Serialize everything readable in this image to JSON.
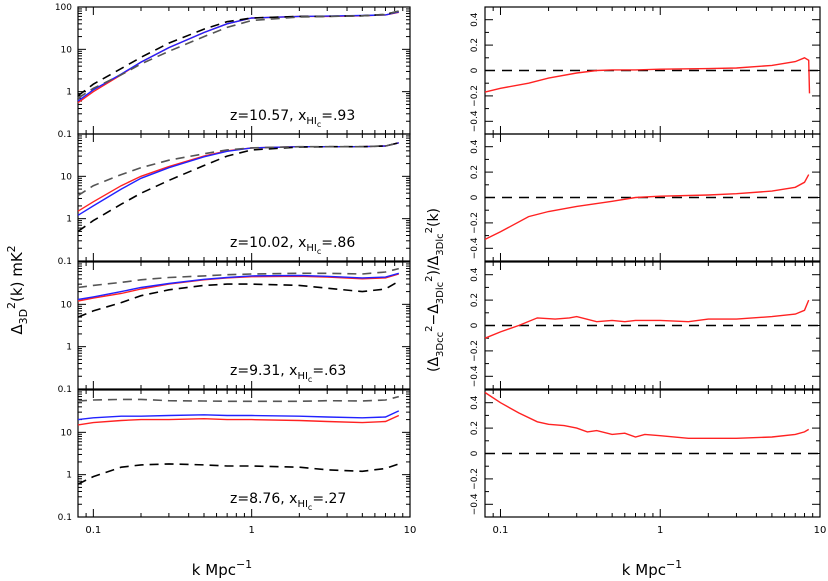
{
  "figure": {
    "left_ylabel_main": "Δ",
    "left_ylabel_sub": "3D",
    "left_ylabel_sup": "2",
    "left_ylabel_tail": "(k) mK",
    "left_ylabel_tail_sup": "2",
    "right_ylabel": "(Δ3Dcc² − Δ3Dlc²)/Δ3Dlc²(k)",
    "right_ylabel_parts": [
      "(Δ",
      "3Dcc",
      "2",
      "−Δ",
      "3Dlc",
      "2",
      ")/Δ",
      "3Dlc",
      "2",
      "(k)"
    ],
    "xlabel_main": "k Mpc",
    "xlabel_sup": "−1"
  },
  "panels": [
    {
      "z_text": "z=10.57,",
      "x_label": "x",
      "x_sub": "HI",
      "x_subsub": "c",
      "x_value": "=.93"
    },
    {
      "z_text": "z=10.02,",
      "x_label": "x",
      "x_sub": "HI",
      "x_subsub": "c",
      "x_value": "=.86"
    },
    {
      "z_text": "z=9.31,",
      "x_label": "x",
      "x_sub": "HI",
      "x_subsub": "c",
      "x_value": "=.63"
    },
    {
      "z_text": "z=8.76,",
      "x_label": "x",
      "x_sub": "HI",
      "x_subsub": "c",
      "x_value": "=.27"
    }
  ],
  "chart_data": [
    {
      "type": "line",
      "side": "left",
      "x_scale": "log",
      "y_scale": "log",
      "xlim": [
        0.08,
        10
      ],
      "ylim": [
        0.1,
        100
      ],
      "x_ticks": [
        "0.1",
        "1",
        "10"
      ],
      "y_ticks": [
        "0.1",
        "1",
        "10",
        "100"
      ],
      "series_colors": {
        "red": "#ff2222",
        "blue": "#2222ff",
        "black": "#000000",
        "gray": "#555555"
      },
      "panels": [
        {
          "series": [
            {
              "color": "red",
              "dash": false,
              "x": [
                0.08,
                0.1,
                0.15,
                0.2,
                0.3,
                0.5,
                0.7,
                1,
                2,
                3,
                5,
                7,
                8.5
              ],
              "y": [
                0.55,
                1.0,
                2.5,
                5,
                11,
                25,
                40,
                55,
                60,
                60,
                62,
                65,
                75
              ]
            },
            {
              "color": "blue",
              "dash": false,
              "x": [
                0.08,
                0.1,
                0.15,
                0.2,
                0.3,
                0.5,
                0.7,
                1,
                2,
                3,
                5,
                7,
                8.5
              ],
              "y": [
                0.6,
                1.1,
                2.6,
                5,
                11,
                25,
                40,
                55,
                60,
                61,
                63,
                65,
                76
              ]
            },
            {
              "color": "black",
              "dash": true,
              "x": [
                0.08,
                0.1,
                0.15,
                0.2,
                0.3,
                0.5,
                0.7,
                1,
                2,
                3,
                5,
                7,
                8.5
              ],
              "y": [
                0.8,
                1.5,
                3.5,
                6.5,
                14,
                30,
                45,
                55,
                60,
                60,
                62,
                67,
                80
              ]
            },
            {
              "color": "gray",
              "dash": true,
              "x": [
                0.08,
                0.1,
                0.15,
                0.2,
                0.3,
                0.5,
                0.7,
                1,
                2,
                3,
                5,
                7,
                8.5
              ],
              "y": [
                0.7,
                1.2,
                2.5,
                4.5,
                9,
                20,
                33,
                48,
                58,
                60,
                62,
                66,
                80
              ]
            }
          ]
        },
        {
          "series": [
            {
              "color": "red",
              "dash": false,
              "x": [
                0.08,
                0.1,
                0.15,
                0.2,
                0.3,
                0.5,
                0.7,
                1,
                2,
                3,
                5,
                7,
                8.5
              ],
              "y": [
                1.5,
                2.5,
                6,
                10,
                17,
                30,
                40,
                47,
                50,
                50,
                50,
                52,
                62
              ]
            },
            {
              "color": "blue",
              "dash": false,
              "x": [
                0.08,
                0.1,
                0.15,
                0.2,
                0.3,
                0.5,
                0.7,
                1,
                2,
                3,
                5,
                7,
                8.5
              ],
              "y": [
                1.2,
                2.0,
                5,
                9,
                16,
                29,
                39,
                47,
                50,
                50,
                50,
                52,
                62
              ]
            },
            {
              "color": "black",
              "dash": true,
              "x": [
                0.08,
                0.1,
                0.15,
                0.2,
                0.3,
                0.5,
                0.7,
                1,
                2,
                3,
                5,
                7,
                8.5
              ],
              "y": [
                0.5,
                0.9,
                2.2,
                4,
                8,
                18,
                30,
                42,
                49,
                50,
                50,
                52,
                62
              ]
            },
            {
              "color": "gray",
              "dash": true,
              "x": [
                0.08,
                0.1,
                0.15,
                0.2,
                0.3,
                0.5,
                0.7,
                1,
                2,
                3,
                5,
                7,
                8.5
              ],
              "y": [
                3.5,
                6,
                11,
                16,
                24,
                34,
                42,
                47,
                50,
                50,
                50,
                52,
                62
              ]
            }
          ]
        },
        {
          "series": [
            {
              "color": "red",
              "dash": false,
              "x": [
                0.08,
                0.1,
                0.15,
                0.2,
                0.3,
                0.5,
                0.7,
                1,
                2,
                3,
                5,
                7,
                8.5
              ],
              "y": [
                12,
                14,
                18,
                23,
                30,
                38,
                42,
                45,
                46,
                44,
                40,
                42,
                52
              ]
            },
            {
              "color": "blue",
              "dash": false,
              "x": [
                0.08,
                0.1,
                0.15,
                0.2,
                0.3,
                0.5,
                0.7,
                1,
                2,
                3,
                5,
                7,
                8.5
              ],
              "y": [
                13,
                15,
                20,
                25,
                31,
                39,
                43,
                47,
                48,
                46,
                42,
                44,
                54
              ]
            },
            {
              "color": "black",
              "dash": true,
              "x": [
                0.08,
                0.1,
                0.15,
                0.2,
                0.3,
                0.5,
                0.7,
                1,
                2,
                3,
                5,
                7,
                8.5
              ],
              "y": [
                5,
                7,
                11,
                16,
                22,
                28,
                30,
                30,
                28,
                24,
                20,
                23,
                35
              ]
            },
            {
              "color": "gray",
              "dash": true,
              "x": [
                0.08,
                0.1,
                0.15,
                0.2,
                0.3,
                0.5,
                0.7,
                1,
                2,
                3,
                5,
                7,
                8.5
              ],
              "y": [
                25,
                28,
                33,
                38,
                43,
                47,
                50,
                52,
                54,
                54,
                52,
                58,
                70
              ]
            }
          ]
        },
        {
          "series": [
            {
              "color": "red",
              "dash": false,
              "x": [
                0.08,
                0.1,
                0.15,
                0.2,
                0.3,
                0.5,
                0.7,
                1,
                2,
                3,
                5,
                7,
                8.5
              ],
              "y": [
                15,
                17,
                19,
                20,
                20,
                21,
                20,
                20,
                19,
                18,
                17,
                18,
                25
              ]
            },
            {
              "color": "blue",
              "dash": false,
              "x": [
                0.08,
                0.1,
                0.15,
                0.2,
                0.3,
                0.5,
                0.7,
                1,
                2,
                3,
                5,
                7,
                8.5
              ],
              "y": [
                20,
                22,
                24,
                24,
                25,
                26,
                25,
                25,
                24,
                23,
                22,
                23,
                32
              ]
            },
            {
              "color": "black",
              "dash": true,
              "x": [
                0.08,
                0.1,
                0.15,
                0.2,
                0.3,
                0.5,
                0.7,
                1,
                2,
                3,
                5,
                7,
                8.5
              ],
              "y": [
                0.6,
                0.9,
                1.5,
                1.7,
                1.8,
                1.7,
                1.6,
                1.6,
                1.5,
                1.3,
                1.2,
                1.4,
                1.8
              ]
            },
            {
              "color": "gray",
              "dash": true,
              "x": [
                0.08,
                0.1,
                0.15,
                0.2,
                0.3,
                0.5,
                0.7,
                1,
                2,
                3,
                5,
                7,
                8.5
              ],
              "y": [
                55,
                58,
                60,
                60,
                56,
                55,
                54,
                54,
                54,
                56,
                55,
                58,
                70
              ]
            }
          ]
        }
      ]
    },
    {
      "type": "line",
      "side": "right",
      "x_scale": "log",
      "y_scale": "linear",
      "xlim": [
        0.08,
        10
      ],
      "ylim": [
        -0.5,
        0.5
      ],
      "x_ticks": [
        "0.1",
        "1",
        "10"
      ],
      "y_ticks": [
        "−0.4",
        "−0.2",
        "0",
        "0.2",
        "0.4"
      ],
      "y_tick_values": [
        -0.4,
        -0.2,
        0,
        0.2,
        0.4
      ],
      "reference_line": 0,
      "series_color": "#ff2222",
      "panels": [
        {
          "x": [
            0.08,
            0.1,
            0.15,
            0.2,
            0.3,
            0.4,
            0.5,
            0.7,
            1,
            2,
            3,
            5,
            7,
            8,
            8.5,
            8.6
          ],
          "y": [
            -0.17,
            -0.14,
            -0.1,
            -0.06,
            -0.02,
            0.0,
            0.005,
            0.005,
            0.01,
            0.015,
            0.02,
            0.04,
            0.07,
            0.1,
            0.08,
            -0.18
          ]
        },
        {
          "x": [
            0.08,
            0.1,
            0.15,
            0.2,
            0.3,
            0.5,
            0.7,
            1,
            2,
            3,
            5,
            7,
            8,
            8.5
          ],
          "y": [
            -0.33,
            -0.27,
            -0.15,
            -0.11,
            -0.07,
            -0.03,
            0.0,
            0.01,
            0.02,
            0.03,
            0.05,
            0.08,
            0.12,
            0.18
          ]
        },
        {
          "x": [
            0.08,
            0.1,
            0.13,
            0.17,
            0.22,
            0.27,
            0.3,
            0.4,
            0.5,
            0.6,
            0.7,
            1,
            1.5,
            2,
            3,
            5,
            7,
            8,
            8.5
          ],
          "y": [
            -0.1,
            -0.05,
            0.0,
            0.06,
            0.05,
            0.06,
            0.07,
            0.03,
            0.04,
            0.03,
            0.04,
            0.04,
            0.03,
            0.05,
            0.05,
            0.07,
            0.09,
            0.12,
            0.2
          ]
        },
        {
          "x": [
            0.08,
            0.1,
            0.13,
            0.17,
            0.2,
            0.25,
            0.3,
            0.35,
            0.4,
            0.5,
            0.6,
            0.7,
            0.8,
            1,
            1.5,
            2,
            3,
            5,
            7,
            8,
            8.5
          ],
          "y": [
            0.48,
            0.4,
            0.32,
            0.25,
            0.23,
            0.22,
            0.2,
            0.17,
            0.18,
            0.15,
            0.16,
            0.13,
            0.15,
            0.14,
            0.12,
            0.12,
            0.12,
            0.13,
            0.15,
            0.17,
            0.19
          ]
        }
      ]
    }
  ]
}
